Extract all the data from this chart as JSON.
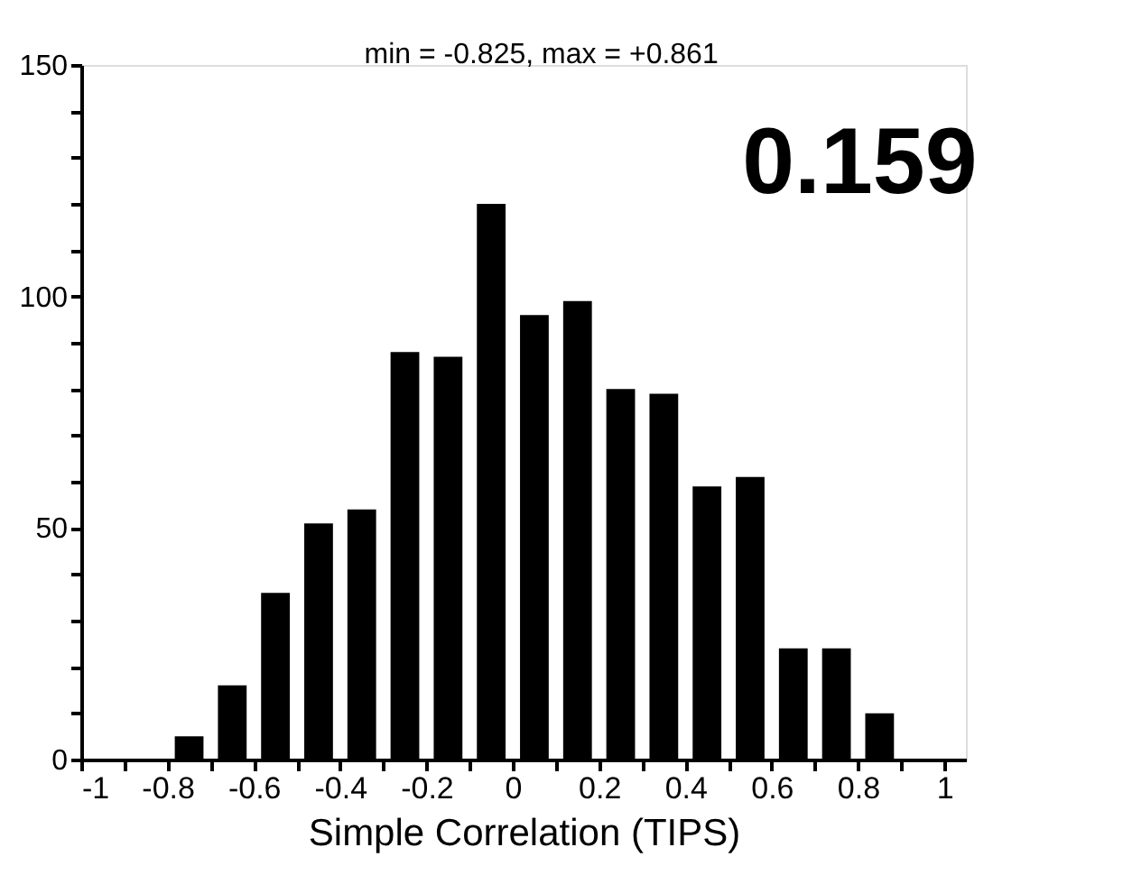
{
  "chart_data": {
    "type": "histogram",
    "xlabel": "Simple Correlation (TIPS)",
    "bins": [
      -0.8,
      -0.7,
      -0.6,
      -0.5,
      -0.4,
      -0.3,
      -0.2,
      -0.1,
      0,
      0.1,
      0.2,
      0.3,
      0.4,
      0.5,
      0.6,
      0.7,
      0.8,
      0.9
    ],
    "values": [
      5,
      16,
      36,
      51,
      54,
      88,
      87,
      120,
      96,
      99,
      80,
      79,
      59,
      61,
      24,
      24,
      10
    ],
    "color": "#000000",
    "xlim": [
      -1,
      1.05
    ],
    "xticks": [
      -1,
      {
        "value": -0.9,
        "label": null
      },
      -0.8,
      {
        "value": -0.7,
        "label": null
      },
      -0.6,
      {
        "value": -0.5,
        "label": null
      },
      -0.4,
      {
        "value": -0.3,
        "label": null
      },
      -0.2,
      {
        "value": -0.1,
        "label": null
      },
      0,
      {
        "value": 0.1,
        "label": null
      },
      0.2,
      {
        "value": 0.3,
        "label": null
      },
      0.4,
      {
        "value": 0.5,
        "label": null
      },
      0.6,
      {
        "value": 0.7,
        "label": null
      },
      0.8,
      {
        "value": 0.9,
        "label": null
      },
      1
    ],
    "ylim": [
      0,
      150
    ],
    "yticks": [
      0,
      {
        "value": 10,
        "label": null
      },
      {
        "value": 20,
        "label": null
      },
      {
        "value": 30,
        "label": null
      },
      {
        "value": 40,
        "label": null
      },
      50,
      {
        "value": 60,
        "label": null
      },
      {
        "value": 70,
        "label": null
      },
      {
        "value": 80,
        "label": null
      },
      {
        "value": 90,
        "label": null
      },
      100,
      {
        "value": 110,
        "label": null
      },
      {
        "value": 120,
        "label": null
      },
      {
        "value": 130,
        "label": null
      },
      {
        "value": 140,
        "label": null
      },
      150
    ],
    "grid": false,
    "annotations": [
      "min = -0.825, max = +0.861",
      "0.159"
    ]
  }
}
